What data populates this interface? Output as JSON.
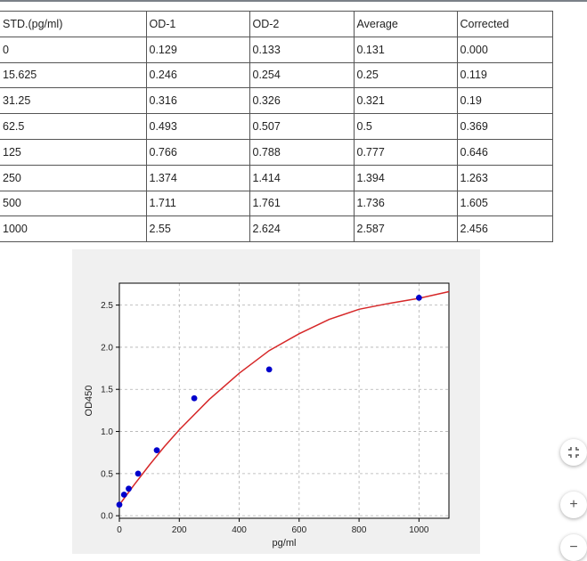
{
  "table": {
    "headers": [
      "STD.(pg/ml)",
      "OD-1",
      "OD-2",
      "Average",
      "Corrected"
    ],
    "rows": [
      [
        "0",
        "0.129",
        "0.133",
        "0.131",
        "0.000"
      ],
      [
        "15.625",
        "0.246",
        "0.254",
        "0.25",
        "0.119"
      ],
      [
        "31.25",
        "0.316",
        "0.326",
        "0.321",
        "0.19"
      ],
      [
        "62.5",
        "0.493",
        "0.507",
        "0.5",
        "0.369"
      ],
      [
        "125",
        "0.766",
        "0.788",
        "0.777",
        "0.646"
      ],
      [
        "250",
        "1.374",
        "1.414",
        "1.394",
        "1.263"
      ],
      [
        "500",
        "1.711",
        "1.761",
        "1.736",
        "1.605"
      ],
      [
        "1000",
        "2.55",
        "2.624",
        "2.587",
        "2.456"
      ]
    ]
  },
  "chart_data": {
    "type": "scatter",
    "title": "",
    "xlabel": "pg/ml",
    "ylabel": "OD450",
    "xlim": [
      0,
      1100
    ],
    "ylim": [
      -0.03,
      2.76
    ],
    "xticks": [
      0,
      200,
      400,
      600,
      800,
      1000
    ],
    "yticks": [
      0.0,
      0.5,
      1.0,
      1.5,
      2.0,
      2.5
    ],
    "ytick_labels": [
      "0.0",
      "0.5",
      "1.0",
      "1.5",
      "2.0",
      "2.5"
    ],
    "grid": true,
    "points": {
      "x": [
        0,
        15.625,
        31.25,
        62.5,
        125,
        250,
        500,
        1000
      ],
      "y": [
        0.131,
        0.25,
        0.321,
        0.5,
        0.777,
        1.394,
        1.736,
        2.587
      ]
    },
    "fit_curve": {
      "x": [
        0,
        25,
        50,
        100,
        150,
        200,
        300,
        400,
        500,
        600,
        700,
        800,
        900,
        1000,
        1100
      ],
      "y": [
        0.13,
        0.25,
        0.37,
        0.6,
        0.82,
        1.02,
        1.38,
        1.69,
        1.96,
        2.16,
        2.33,
        2.45,
        2.52,
        2.58,
        2.66
      ]
    },
    "colors": {
      "points": "#0000cc",
      "curve": "#d62728",
      "grid": "#b0b0b0"
    }
  },
  "controls": {
    "fit_icon": "fit-to-page-icon",
    "zoom_in_label": "+",
    "zoom_out_label": "−"
  }
}
